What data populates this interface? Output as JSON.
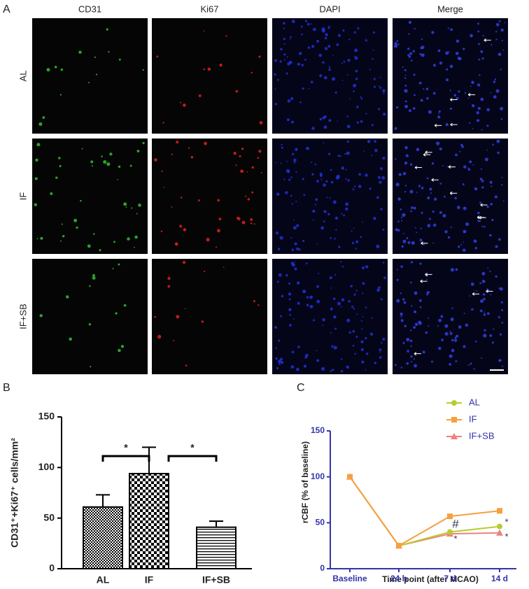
{
  "panel_a": {
    "label": "A",
    "columns": [
      "CD31",
      "Ki67",
      "DAPI",
      "Merge"
    ],
    "rows": [
      "AL",
      "IF",
      "IF+SB"
    ]
  },
  "chart_data": [
    {
      "type": "bar",
      "label": "B",
      "y_label": "CD31⁺+Ki67⁺ cells/mm²",
      "categories": [
        "AL",
        "IF",
        "IF+SB"
      ],
      "values": [
        61,
        94,
        41
      ],
      "errors": [
        12,
        26,
        6
      ],
      "fills": [
        "checker-small",
        "checker-large",
        "hlines"
      ],
      "ylim": [
        0,
        150
      ],
      "yticks": [
        0,
        50,
        100,
        150
      ],
      "comparisons": [
        {
          "text": "*"
        },
        {
          "text": "*"
        }
      ]
    },
    {
      "type": "line",
      "label": "C",
      "x_label": "Time point (after MCAO)",
      "y_label": "rCBF (% of baseline)",
      "categories": [
        "Baseline",
        "24 h",
        "7 d",
        "14 d"
      ],
      "series": [
        {
          "name": "AL",
          "color": "#b8cc2e",
          "marker": "circle",
          "values": [
            100,
            25,
            40,
            46
          ]
        },
        {
          "name": "IF",
          "color": "#f5a040",
          "marker": "square",
          "values": [
            100,
            25,
            57,
            63
          ]
        },
        {
          "name": "IF+SB",
          "color": "#f08080",
          "marker": "triangle",
          "values": [
            100,
            25,
            38,
            39
          ]
        }
      ],
      "ylim": [
        0,
        150
      ],
      "yticks": [
        0,
        50,
        100,
        150
      ],
      "legend": "top-right",
      "annotations": [
        {
          "text": "#"
        },
        {
          "text": "*"
        },
        {
          "text": "*"
        },
        {
          "text": "*"
        }
      ]
    }
  ]
}
